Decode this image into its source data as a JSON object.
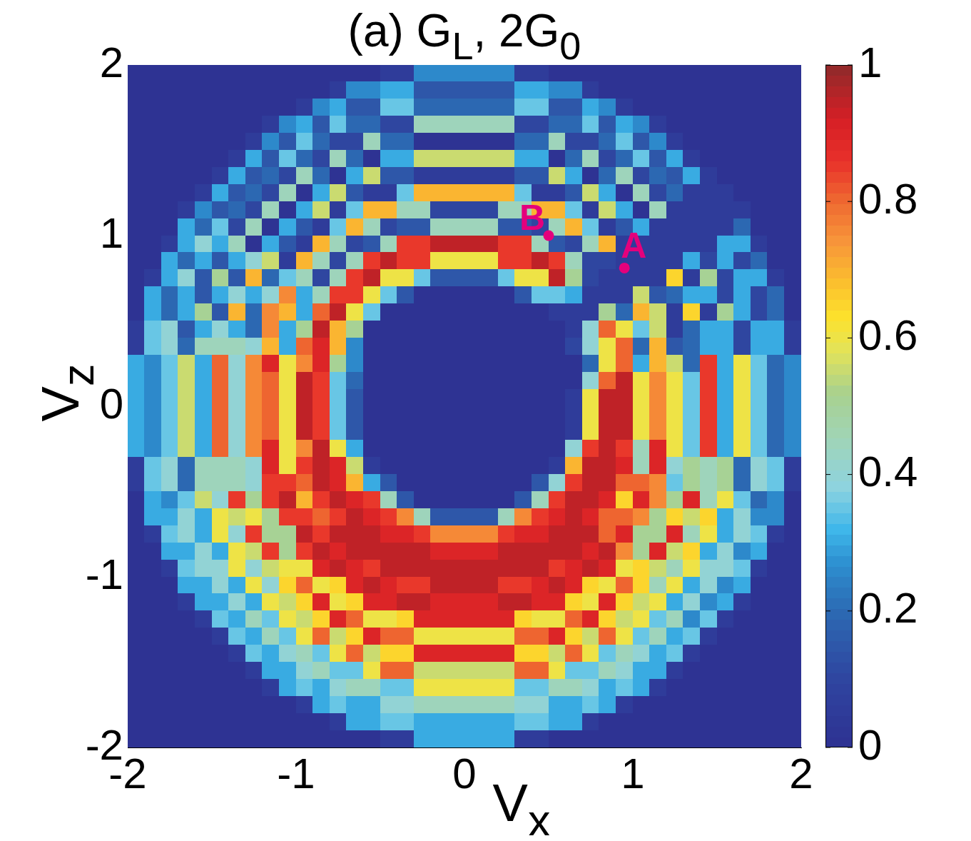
{
  "chart_data": {
    "type": "heatmap",
    "title": "(a) G$_{L}$, 2G$_{0}$",
    "xlabel": "V$_{x}$",
    "ylabel": "V$_{z}$",
    "xlim": [
      -2,
      2
    ],
    "ylim": [
      -2,
      2
    ],
    "xticks": [
      -2,
      -1,
      0,
      1,
      2
    ],
    "yticks": [
      -2,
      -1,
      0,
      1,
      2
    ],
    "clim": [
      0,
      1
    ],
    "cticks": [
      0,
      0.2,
      0.4,
      0.6,
      0.8,
      1
    ],
    "marker": "circle",
    "series": [
      {
        "type": "scatter",
        "color": "#e4007c",
        "x": [
          0.5,
          0.95
        ],
        "values": [
          1.0,
          0.81
        ]
      }
    ],
    "annotations": [
      {
        "text": "B",
        "x": 0.5,
        "y": 1.0
      },
      {
        "text": "A",
        "x": 0.95,
        "y": 0.81
      }
    ],
    "cells": [
      [
        0,
        0,
        0,
        0,
        0,
        0,
        0,
        0,
        0,
        0,
        0,
        0,
        0,
        0,
        0,
        0.05,
        0.05,
        0.25,
        0.25,
        0.25,
        0.25,
        0.25,
        0.25,
        0.05,
        0.05,
        0,
        0,
        0,
        0,
        0,
        0,
        0,
        0,
        0,
        0,
        0,
        0,
        0,
        0,
        0
      ],
      [
        0,
        0,
        0,
        0,
        0,
        0,
        0,
        0,
        0,
        0,
        0,
        0,
        0.05,
        0.25,
        0.25,
        0.3,
        0.3,
        0.15,
        0.15,
        0.15,
        0.15,
        0.15,
        0.15,
        0.3,
        0.3,
        0.25,
        0.25,
        0.05,
        0,
        0,
        0,
        0,
        0,
        0,
        0,
        0,
        0,
        0,
        0,
        0
      ],
      [
        0,
        0,
        0,
        0,
        0,
        0,
        0,
        0,
        0,
        0,
        0.05,
        0.25,
        0.3,
        0.15,
        0.15,
        0.35,
        0.35,
        0.2,
        0.2,
        0.2,
        0.2,
        0.2,
        0.2,
        0.35,
        0.35,
        0.15,
        0.15,
        0.3,
        0.25,
        0.05,
        0,
        0,
        0,
        0,
        0,
        0,
        0,
        0,
        0,
        0
      ],
      [
        0,
        0,
        0,
        0,
        0,
        0,
        0,
        0,
        0.05,
        0.25,
        0.3,
        0.15,
        0.35,
        0.2,
        0.2,
        0.1,
        0.1,
        0.45,
        0.45,
        0.45,
        0.45,
        0.45,
        0.45,
        0.1,
        0.1,
        0.2,
        0.2,
        0.35,
        0.15,
        0.3,
        0.25,
        0.05,
        0,
        0,
        0,
        0,
        0,
        0,
        0,
        0
      ],
      [
        0,
        0,
        0,
        0,
        0,
        0,
        0,
        0.05,
        0.25,
        0.15,
        0.35,
        0.2,
        0.1,
        0.1,
        0.45,
        0.2,
        0.2,
        0,
        0,
        0,
        0,
        0,
        0,
        0.2,
        0.2,
        0.45,
        0.1,
        0.1,
        0.2,
        0.35,
        0.15,
        0.25,
        0.05,
        0,
        0,
        0,
        0,
        0,
        0,
        0
      ],
      [
        0,
        0,
        0,
        0,
        0,
        0,
        0.05,
        0.3,
        0.15,
        0.35,
        0.2,
        0.1,
        0.45,
        0.2,
        0,
        0.3,
        0.3,
        0.55,
        0.55,
        0.55,
        0.55,
        0.55,
        0.55,
        0.3,
        0.3,
        0,
        0.2,
        0.45,
        0.1,
        0.2,
        0.35,
        0.15,
        0.3,
        0.05,
        0,
        0,
        0,
        0,
        0,
        0
      ],
      [
        0,
        0,
        0,
        0,
        0,
        0.05,
        0.3,
        0.15,
        0.2,
        0.1,
        0.45,
        0.2,
        0,
        0.3,
        0.55,
        0.15,
        0.15,
        0.05,
        0.05,
        0.05,
        0.05,
        0.05,
        0.05,
        0.15,
        0.15,
        0.55,
        0.3,
        0,
        0.2,
        0.45,
        0.1,
        0.2,
        0.15,
        0.3,
        0.05,
        0,
        0,
        0,
        0,
        0
      ],
      [
        0,
        0,
        0,
        0,
        0.05,
        0.3,
        0.15,
        0.2,
        0.1,
        0.45,
        0,
        0.3,
        0.55,
        0.15,
        0.05,
        0.05,
        0.35,
        0.7,
        0.7,
        0.7,
        0.7,
        0.7,
        0.7,
        0.35,
        0.05,
        0.05,
        0.15,
        0.55,
        0.3,
        0,
        0.45,
        0.1,
        0.2,
        0.05,
        0.05,
        0.05,
        0,
        0,
        0,
        0
      ],
      [
        0,
        0,
        0,
        0.05,
        0.25,
        0.15,
        0.2,
        0.1,
        0.45,
        0,
        0.3,
        0.55,
        0.05,
        0.35,
        0.7,
        0.7,
        0.45,
        0.45,
        0.1,
        0.1,
        0.1,
        0.1,
        0.45,
        0.45,
        0.7,
        0.7,
        0.35,
        0.05,
        0.55,
        0.3,
        0,
        0.45,
        0.05,
        0.05,
        0.05,
        0.05,
        0.05,
        0,
        0,
        0
      ],
      [
        0,
        0,
        0,
        0.3,
        0.2,
        0.35,
        0.1,
        0.45,
        0,
        0.3,
        0.15,
        0.05,
        0.35,
        0.7,
        0.45,
        0.1,
        0.15,
        0.15,
        0.45,
        0.45,
        0.45,
        0.45,
        0.15,
        0.15,
        0.1,
        0.45,
        0.7,
        0.35,
        0.05,
        0.15,
        0.3,
        0.05,
        0.05,
        0.05,
        0.05,
        0.05,
        0.2,
        0,
        0,
        0
      ],
      [
        0,
        0,
        0.05,
        0.3,
        0.4,
        0.3,
        0.45,
        0,
        0.3,
        0.15,
        0.05,
        0.7,
        0.45,
        0.1,
        0.15,
        0.45,
        0.85,
        0.85,
        0.95,
        0.95,
        0.95,
        0.95,
        0.85,
        0.85,
        0.45,
        0.15,
        0.1,
        0.45,
        0.7,
        0.05,
        0.05,
        0.05,
        0.05,
        0.05,
        0.05,
        0.3,
        0.3,
        0.05,
        0,
        0
      ],
      [
        0,
        0,
        0.3,
        0.2,
        0.3,
        0.15,
        0.3,
        0.4,
        0.55,
        0.05,
        0.7,
        0.45,
        0.1,
        0.45,
        0.85,
        0.95,
        0.85,
        0.85,
        0.6,
        0.6,
        0.6,
        0.6,
        0.85,
        0.85,
        0.95,
        0.85,
        0.45,
        0.1,
        0.1,
        0.05,
        0.05,
        0.05,
        0.05,
        0.3,
        0.1,
        0.3,
        0.1,
        0.2,
        0,
        0
      ],
      [
        0,
        0.05,
        0.3,
        0.4,
        0.15,
        0.5,
        0.15,
        0.7,
        0.2,
        0.35,
        0.45,
        0.1,
        0.45,
        0.85,
        0.95,
        0.6,
        0.6,
        0.35,
        0.15,
        0.15,
        0.15,
        0.15,
        0.35,
        0.6,
        0.6,
        0.95,
        0.5,
        0.1,
        0.05,
        0.05,
        0.05,
        0.05,
        0.65,
        0.05,
        0.5,
        0.1,
        0.3,
        0.3,
        0.05,
        0
      ],
      [
        0,
        0.3,
        0.2,
        0.3,
        0.15,
        0.3,
        0.4,
        0.3,
        0.4,
        0.75,
        0.3,
        0.45,
        0.85,
        0.85,
        0.6,
        0.35,
        0.15,
        0,
        0,
        0,
        0,
        0,
        0,
        0.15,
        0.35,
        0.35,
        0.3,
        0.05,
        0.05,
        0.05,
        0.55,
        0.15,
        0.2,
        0.3,
        0.3,
        0.1,
        0.3,
        0.1,
        0.2,
        0
      ],
      [
        0,
        0.3,
        0.2,
        0.3,
        0.5,
        0.15,
        0.7,
        0.2,
        0.75,
        0.7,
        0.3,
        0.8,
        0.95,
        0.6,
        0.35,
        0,
        0,
        0,
        0,
        0,
        0,
        0,
        0,
        0,
        0,
        0.05,
        0.05,
        0.05,
        0.5,
        0.2,
        0.7,
        0.55,
        0.05,
        0.65,
        0.05,
        0.5,
        0.3,
        0.1,
        0.2,
        0
      ],
      [
        0.05,
        0.35,
        0.4,
        0.15,
        0.3,
        0.4,
        0.3,
        0.2,
        0.75,
        0.3,
        0.5,
        0.95,
        0.7,
        0.5,
        0,
        0,
        0,
        0,
        0,
        0,
        0,
        0,
        0,
        0,
        0,
        0,
        0.05,
        0.4,
        0.8,
        0.6,
        0.35,
        0.55,
        0.05,
        0.2,
        0.3,
        0.3,
        0.1,
        0.3,
        0.3,
        0.05
      ],
      [
        0.05,
        0.35,
        0.4,
        0.2,
        0.45,
        0.45,
        0.45,
        0.4,
        0.7,
        0.3,
        0.8,
        0.9,
        0.7,
        0.25,
        0,
        0,
        0,
        0,
        0,
        0,
        0,
        0,
        0,
        0,
        0,
        0,
        0.1,
        0.4,
        0.6,
        0.8,
        0.2,
        0.7,
        0.15,
        0.2,
        0.3,
        0.3,
        0.1,
        0.3,
        0.3,
        0.05
      ],
      [
        0.3,
        0.25,
        0.35,
        0.55,
        0.3,
        0.8,
        0.4,
        0.75,
        0.9,
        0.6,
        0.75,
        0.9,
        0.5,
        0.25,
        0,
        0,
        0,
        0,
        0,
        0,
        0,
        0,
        0,
        0,
        0,
        0,
        0,
        0.2,
        0.6,
        0.8,
        0.3,
        0.7,
        0.55,
        0.2,
        0.85,
        0.3,
        0.6,
        0.35,
        0.2,
        0.25
      ],
      [
        0.3,
        0.25,
        0.35,
        0.55,
        0.3,
        0.8,
        0.4,
        0.75,
        0.8,
        0.6,
        0.95,
        0.85,
        0.35,
        0.2,
        0,
        0,
        0,
        0,
        0,
        0,
        0,
        0,
        0,
        0,
        0,
        0,
        0,
        0.4,
        0.8,
        0.95,
        0.6,
        0.75,
        0.6,
        0.35,
        0.85,
        0.3,
        0.6,
        0.35,
        0.2,
        0.25
      ],
      [
        0.3,
        0.25,
        0.35,
        0.55,
        0.3,
        0.8,
        0.4,
        0.75,
        0.8,
        0.6,
        0.95,
        0.85,
        0.35,
        0.15,
        0,
        0,
        0,
        0,
        0,
        0,
        0,
        0,
        0,
        0,
        0,
        0,
        0.05,
        0.6,
        0.95,
        0.95,
        0.6,
        0.75,
        0.6,
        0.35,
        0.85,
        0.3,
        0.6,
        0.35,
        0.2,
        0.25
      ],
      [
        0.3,
        0.25,
        0.35,
        0.55,
        0.3,
        0.8,
        0.4,
        0.75,
        0.8,
        0.6,
        0.95,
        0.85,
        0.35,
        0.15,
        0,
        0,
        0,
        0,
        0,
        0,
        0,
        0,
        0,
        0,
        0,
        0,
        0.05,
        0.6,
        0.95,
        0.95,
        0.6,
        0.75,
        0.6,
        0.35,
        0.85,
        0.3,
        0.6,
        0.35,
        0.2,
        0.25
      ],
      [
        0.3,
        0.25,
        0.35,
        0.55,
        0.3,
        0.8,
        0.4,
        0.75,
        0.8,
        0.6,
        0.95,
        0.85,
        0.35,
        0.15,
        0,
        0,
        0,
        0,
        0,
        0,
        0,
        0,
        0,
        0,
        0,
        0,
        0.05,
        0.6,
        0.95,
        0.95,
        0.6,
        0.75,
        0.6,
        0.35,
        0.85,
        0.3,
        0.6,
        0.35,
        0.2,
        0.25
      ],
      [
        0.3,
        0.25,
        0.35,
        0.55,
        0.3,
        0.8,
        0.4,
        0.75,
        0.9,
        0.6,
        0.75,
        0.95,
        0.6,
        0.3,
        0,
        0,
        0,
        0,
        0,
        0,
        0,
        0,
        0,
        0,
        0,
        0,
        0.4,
        0.85,
        0.95,
        0.85,
        0.45,
        0.9,
        0.6,
        0.35,
        0.85,
        0.3,
        0.6,
        0.35,
        0.2,
        0.25
      ],
      [
        0.05,
        0.35,
        0.4,
        0.2,
        0.45,
        0.45,
        0.45,
        0.4,
        0.9,
        0.6,
        0.85,
        0.95,
        0.9,
        0.55,
        0.05,
        0,
        0,
        0,
        0,
        0,
        0,
        0,
        0,
        0,
        0,
        0.05,
        0.7,
        0.95,
        0.95,
        0.9,
        0.45,
        0.9,
        0.4,
        0.5,
        0.45,
        0.5,
        0.2,
        0.4,
        0.35,
        0.05
      ],
      [
        0.05,
        0.35,
        0.4,
        0.2,
        0.45,
        0.45,
        0.45,
        0.4,
        0.85,
        0.85,
        0.8,
        0.95,
        0.9,
        0.7,
        0.3,
        0.15,
        0,
        0,
        0,
        0,
        0,
        0,
        0,
        0,
        0.15,
        0.4,
        0.85,
        0.95,
        0.95,
        0.8,
        0.8,
        0.75,
        0.35,
        0.5,
        0.45,
        0.5,
        0.2,
        0.4,
        0.35,
        0.05
      ],
      [
        0,
        0.3,
        0.25,
        0.35,
        0.55,
        0.4,
        0.85,
        0.5,
        0.85,
        0.95,
        0.7,
        0.85,
        0.95,
        0.9,
        0.85,
        0.45,
        0.15,
        0,
        0,
        0,
        0,
        0,
        0,
        0.15,
        0.45,
        0.85,
        0.95,
        0.95,
        0.9,
        0.65,
        0.9,
        0.75,
        0.5,
        0.9,
        0.45,
        0.6,
        0.35,
        0.2,
        0.25,
        0
      ],
      [
        0,
        0.3,
        0.3,
        0.4,
        0.3,
        0.6,
        0.55,
        0.6,
        0.5,
        0.85,
        0.85,
        0.8,
        0.85,
        0.95,
        0.9,
        0.85,
        0.75,
        0.45,
        0.15,
        0.15,
        0.15,
        0.15,
        0.45,
        0.75,
        0.85,
        0.9,
        0.95,
        0.9,
        0.8,
        0.8,
        0.75,
        0.5,
        0.65,
        0.55,
        0.65,
        0.3,
        0.4,
        0.25,
        0.25,
        0
      ],
      [
        0,
        0.05,
        0.35,
        0.4,
        0.3,
        0.6,
        0.4,
        0.85,
        0.5,
        0.5,
        0.95,
        0.85,
        0.95,
        0.95,
        0.95,
        0.9,
        0.9,
        0.85,
        0.75,
        0.75,
        0.75,
        0.75,
        0.85,
        0.9,
        0.9,
        0.95,
        0.95,
        0.95,
        0.8,
        0.9,
        0.5,
        0.5,
        0.9,
        0.45,
        0.6,
        0.3,
        0.4,
        0.35,
        0.05,
        0
      ],
      [
        0,
        0,
        0.3,
        0.3,
        0.4,
        0.3,
        0.6,
        0.55,
        0.85,
        0.5,
        0.85,
        0.95,
        0.9,
        0.95,
        0.95,
        0.95,
        0.95,
        0.95,
        0.9,
        0.9,
        0.9,
        0.9,
        0.95,
        0.95,
        0.95,
        0.95,
        0.95,
        0.9,
        0.95,
        0.75,
        0.5,
        0.9,
        0.55,
        0.65,
        0.3,
        0.4,
        0.25,
        0.3,
        0,
        0
      ],
      [
        0,
        0,
        0.05,
        0.35,
        0.4,
        0.4,
        0.6,
        0.4,
        0.55,
        0.6,
        0.6,
        0.9,
        0.95,
        0.9,
        0.85,
        0.95,
        0.95,
        0.95,
        0.95,
        0.95,
        0.95,
        0.95,
        0.95,
        0.95,
        0.95,
        0.85,
        0.9,
        0.95,
        0.9,
        0.6,
        0.65,
        0.55,
        0.45,
        0.6,
        0.4,
        0.4,
        0.35,
        0.05,
        0,
        0
      ],
      [
        0,
        0,
        0,
        0.3,
        0.3,
        0.4,
        0.3,
        0.6,
        0.4,
        0.65,
        0.8,
        0.6,
        0.65,
        0.9,
        0.95,
        0.9,
        0.85,
        0.85,
        0.95,
        0.95,
        0.95,
        0.95,
        0.85,
        0.85,
        0.9,
        0.95,
        0.9,
        0.65,
        0.6,
        0.8,
        0.65,
        0.45,
        0.6,
        0.3,
        0.4,
        0.25,
        0.3,
        0,
        0,
        0
      ],
      [
        0,
        0,
        0,
        0.05,
        0.3,
        0.3,
        0.4,
        0.3,
        0.6,
        0.55,
        0.65,
        0.9,
        0.6,
        0.65,
        0.9,
        0.9,
        0.95,
        0.95,
        0.9,
        0.9,
        0.9,
        0.9,
        0.95,
        0.95,
        0.9,
        0.9,
        0.65,
        0.6,
        0.9,
        0.65,
        0.55,
        0.6,
        0.3,
        0.4,
        0.25,
        0.3,
        0.05,
        0,
        0,
        0
      ],
      [
        0,
        0,
        0,
        0,
        0.05,
        0.35,
        0.3,
        0.45,
        0.35,
        0.6,
        0.55,
        0.65,
        0.9,
        0.8,
        0.6,
        0.6,
        0.65,
        0.9,
        0.9,
        0.9,
        0.9,
        0.9,
        0.9,
        0.65,
        0.6,
        0.6,
        0.8,
        0.9,
        0.65,
        0.55,
        0.6,
        0.35,
        0.45,
        0.25,
        0.35,
        0.05,
        0,
        0,
        0,
        0
      ],
      [
        0,
        0,
        0,
        0,
        0,
        0.05,
        0.35,
        0.3,
        0.45,
        0.35,
        0.6,
        0.8,
        0.55,
        0.65,
        0.9,
        0.8,
        0.8,
        0.6,
        0.6,
        0.6,
        0.6,
        0.6,
        0.6,
        0.8,
        0.8,
        0.9,
        0.65,
        0.55,
        0.8,
        0.6,
        0.35,
        0.45,
        0.3,
        0.35,
        0.05,
        0,
        0,
        0,
        0,
        0
      ],
      [
        0,
        0,
        0,
        0,
        0,
        0,
        0.05,
        0.35,
        0.3,
        0.4,
        0.45,
        0.35,
        0.6,
        0.8,
        0.55,
        0.65,
        0.65,
        0.9,
        0.9,
        0.9,
        0.9,
        0.9,
        0.9,
        0.65,
        0.65,
        0.55,
        0.8,
        0.6,
        0.35,
        0.45,
        0.4,
        0.3,
        0.35,
        0.05,
        0,
        0,
        0,
        0,
        0,
        0
      ],
      [
        0,
        0,
        0,
        0,
        0,
        0,
        0,
        0.05,
        0.3,
        0.3,
        0.4,
        0.45,
        0.35,
        0.35,
        0.6,
        0.8,
        0.8,
        0.55,
        0.55,
        0.55,
        0.55,
        0.55,
        0.55,
        0.8,
        0.8,
        0.6,
        0.35,
        0.35,
        0.45,
        0.4,
        0.3,
        0.3,
        0.05,
        0,
        0,
        0,
        0,
        0,
        0,
        0
      ],
      [
        0,
        0,
        0,
        0,
        0,
        0,
        0,
        0,
        0.05,
        0.3,
        0.35,
        0.3,
        0.4,
        0.45,
        0.45,
        0.35,
        0.35,
        0.6,
        0.6,
        0.6,
        0.6,
        0.6,
        0.6,
        0.35,
        0.35,
        0.45,
        0.45,
        0.4,
        0.3,
        0.35,
        0.3,
        0.05,
        0,
        0,
        0,
        0,
        0,
        0,
        0,
        0
      ],
      [
        0,
        0,
        0,
        0,
        0,
        0,
        0,
        0,
        0,
        0,
        0.05,
        0.3,
        0.35,
        0.3,
        0.3,
        0.4,
        0.4,
        0.45,
        0.45,
        0.45,
        0.45,
        0.45,
        0.45,
        0.4,
        0.4,
        0.3,
        0.3,
        0.35,
        0.3,
        0.05,
        0,
        0,
        0,
        0,
        0,
        0,
        0,
        0,
        0,
        0
      ],
      [
        0,
        0,
        0,
        0,
        0,
        0,
        0,
        0,
        0,
        0,
        0,
        0,
        0.05,
        0.3,
        0.3,
        0.35,
        0.35,
        0.3,
        0.3,
        0.3,
        0.3,
        0.3,
        0.3,
        0.35,
        0.35,
        0.3,
        0.3,
        0.05,
        0,
        0,
        0,
        0,
        0,
        0,
        0,
        0,
        0,
        0,
        0,
        0
      ],
      [
        0,
        0,
        0,
        0,
        0,
        0,
        0,
        0,
        0,
        0,
        0,
        0,
        0,
        0,
        0,
        0.05,
        0.05,
        0.3,
        0.3,
        0.3,
        0.3,
        0.3,
        0.3,
        0.05,
        0.05,
        0,
        0,
        0,
        0,
        0,
        0,
        0,
        0,
        0,
        0,
        0,
        0,
        0,
        0,
        0
      ]
    ]
  }
}
